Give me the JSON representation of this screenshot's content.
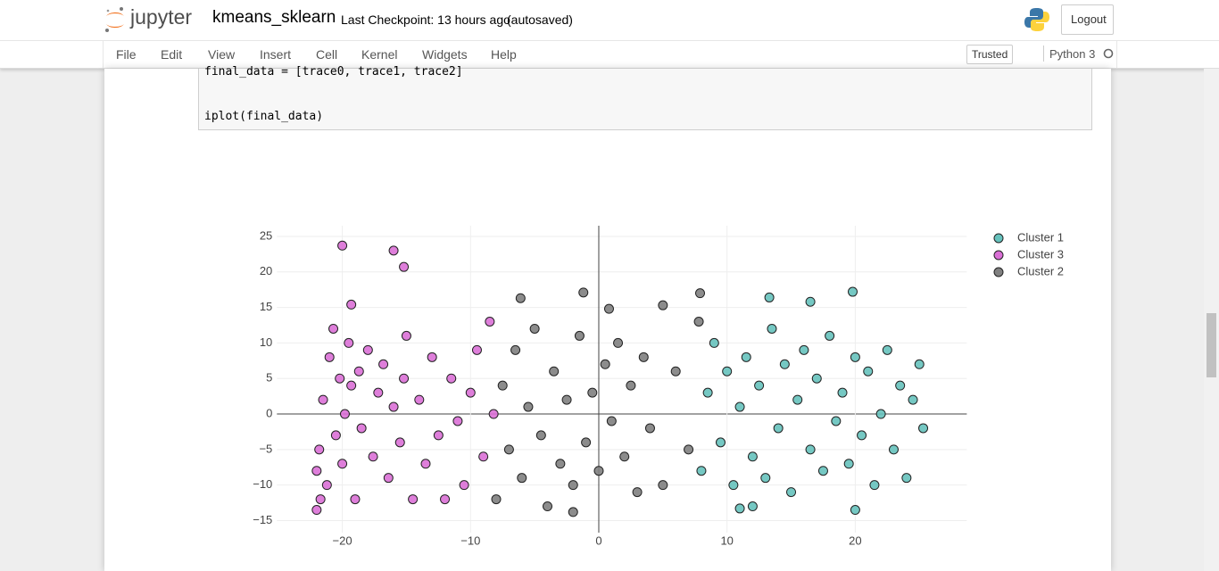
{
  "header": {
    "logo": "jupyter",
    "notebook_name": "kmeans_sklearn",
    "checkpoint": "Last Checkpoint: 13 hours ago",
    "autosaved": "(autosaved)",
    "logout": "Logout"
  },
  "menu": {
    "items": [
      "File",
      "Edit",
      "View",
      "Insert",
      "Cell",
      "Kernel",
      "Widgets",
      "Help"
    ],
    "trusted": "Trusted",
    "kernel": "Python 3"
  },
  "code": {
    "lines": [
      "final_data = [trace0, trace1, trace2]",
      "iplot(final_data)"
    ]
  },
  "chart_data": {
    "type": "scatter",
    "series": [
      {
        "name": "Cluster 1",
        "color": "#66c2bd",
        "x": [
          8,
          8.5,
          9,
          9.5,
          10,
          10.5,
          11,
          11.5,
          12,
          12.5,
          13,
          13.5,
          14,
          14.5,
          15,
          15.5,
          16,
          16.5,
          17,
          17.5,
          18,
          18.5,
          19,
          19.5,
          20,
          20.5,
          21,
          21.5,
          22,
          22.5,
          23,
          23.5,
          24,
          24.5,
          25,
          25.3,
          19.8,
          20,
          11,
          12,
          16.5,
          13.3
        ],
        "y": [
          -8,
          3,
          10,
          -4,
          6,
          -10,
          1,
          8,
          -6,
          4,
          -9,
          12,
          -2,
          7,
          -11,
          2,
          9,
          -5,
          5,
          -8,
          11,
          -1,
          3,
          -7,
          8,
          -3,
          6,
          -10,
          0,
          9,
          -5,
          4,
          -9,
          2,
          7,
          -2,
          17.2,
          -13.5,
          -13.3,
          -13,
          15.8,
          16.4
        ]
      },
      {
        "name": "Cluster 3",
        "color": "#da70d6",
        "x": [
          -22,
          -21.8,
          -21.5,
          -21.2,
          -21,
          -20.7,
          -20.5,
          -20.2,
          -20,
          -19.8,
          -19.5,
          -19.3,
          -19,
          -18.7,
          -18.5,
          -18,
          -17.6,
          -17.2,
          -16.8,
          -16.4,
          -16,
          -15.5,
          -15.2,
          -15,
          -14.5,
          -14,
          -13.5,
          -13,
          -12.5,
          -12,
          -11.5,
          -11,
          -10.5,
          -10,
          -9.5,
          -9,
          -8.5,
          -8.2,
          -16,
          -15.2,
          -20,
          -19.3,
          -22,
          -21.7
        ],
        "y": [
          -8,
          -5,
          2,
          -10,
          8,
          12,
          -3,
          5,
          -7,
          0,
          10,
          4,
          -12,
          6,
          -2,
          9,
          -6,
          3,
          7,
          -9,
          1,
          -4,
          5,
          11,
          -12,
          2,
          -7,
          8,
          -3,
          -12,
          5,
          -1,
          -10,
          3,
          9,
          -6,
          13,
          0,
          23,
          20.7,
          23.7,
          15.4,
          -13.5,
          -12
        ]
      },
      {
        "name": "Cluster 2",
        "color": "#808080",
        "x": [
          -8,
          -7.5,
          -7,
          -6.5,
          -6,
          -5.5,
          -5,
          -4.5,
          -4,
          -3.5,
          -3,
          -2.5,
          -2,
          -1.5,
          -1,
          -0.5,
          0,
          0.5,
          1,
          1.5,
          2,
          2.5,
          3,
          3.5,
          4,
          5,
          6,
          7,
          7.8,
          -1.2,
          -6.1,
          0.8,
          7.9,
          5,
          -2
        ],
        "y": [
          -12,
          4,
          -5,
          9,
          -9,
          1,
          12,
          -3,
          -13,
          6,
          -7,
          2,
          -10,
          11,
          -4,
          3,
          -8,
          7,
          -1,
          10,
          -6,
          4,
          -11,
          8,
          -2,
          -10,
          6,
          -5,
          13,
          17.1,
          16.3,
          14.8,
          17,
          15.3,
          -13.8
        ]
      }
    ],
    "xlim": [
      -25.1,
      28.7
    ],
    "ylim": [
      -16.7,
      26.5
    ],
    "xticks": [
      {
        "value": -20,
        "label": "−20"
      },
      {
        "value": -10,
        "label": "−10"
      },
      0,
      10,
      20
    ],
    "yticks": [
      {
        "value": -15,
        "label": "−15"
      },
      {
        "value": -10,
        "label": "−10"
      },
      {
        "value": -5,
        "label": "−5"
      },
      0,
      5,
      10,
      15,
      20,
      25
    ],
    "grid": true,
    "legend": "top-right"
  }
}
